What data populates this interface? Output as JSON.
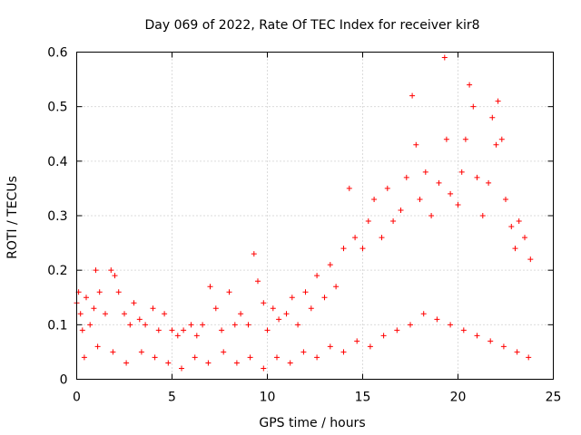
{
  "chart_data": {
    "type": "scatter",
    "title": "Day 069 of 2022, Rate Of TEC Index for receiver kir8",
    "xlabel": "GPS time / hours",
    "ylabel": "ROTI / TECUs",
    "xlim": [
      0,
      25
    ],
    "ylim": [
      0,
      0.6
    ],
    "xticks": [
      "0",
      "5",
      "10",
      "15",
      "20",
      "25"
    ],
    "yticks": [
      "0",
      "0.1",
      "0.2",
      "0.3",
      "0.4",
      "0.5",
      "0.6"
    ],
    "grid": true,
    "marker": "plus",
    "color": "#ff0000",
    "series": [
      {
        "points": [
          [
            0.0,
            0.14
          ],
          [
            0.1,
            0.16
          ],
          [
            0.2,
            0.12
          ],
          [
            0.3,
            0.09
          ],
          [
            0.5,
            0.15
          ],
          [
            0.7,
            0.1
          ],
          [
            0.9,
            0.13
          ],
          [
            1.0,
            0.2
          ],
          [
            1.2,
            0.16
          ],
          [
            1.5,
            0.12
          ],
          [
            1.8,
            0.2
          ],
          [
            2.0,
            0.19
          ],
          [
            2.2,
            0.16
          ],
          [
            2.5,
            0.12
          ],
          [
            2.8,
            0.1
          ],
          [
            3.0,
            0.14
          ],
          [
            3.3,
            0.11
          ],
          [
            3.6,
            0.1
          ],
          [
            4.0,
            0.13
          ],
          [
            4.3,
            0.09
          ],
          [
            4.6,
            0.12
          ],
          [
            5.0,
            0.09
          ],
          [
            5.3,
            0.08
          ],
          [
            5.6,
            0.09
          ],
          [
            6.0,
            0.1
          ],
          [
            6.3,
            0.08
          ],
          [
            6.6,
            0.1
          ],
          [
            7.0,
            0.17
          ],
          [
            7.3,
            0.13
          ],
          [
            7.6,
            0.09
          ],
          [
            8.0,
            0.16
          ],
          [
            8.3,
            0.1
          ],
          [
            8.6,
            0.12
          ],
          [
            9.0,
            0.1
          ],
          [
            9.3,
            0.23
          ],
          [
            9.5,
            0.18
          ],
          [
            9.8,
            0.14
          ],
          [
            10.0,
            0.09
          ],
          [
            10.3,
            0.13
          ],
          [
            10.6,
            0.11
          ],
          [
            11.0,
            0.12
          ],
          [
            11.3,
            0.15
          ],
          [
            11.6,
            0.1
          ],
          [
            12.0,
            0.16
          ],
          [
            12.3,
            0.13
          ],
          [
            12.6,
            0.19
          ],
          [
            13.0,
            0.15
          ],
          [
            13.3,
            0.21
          ],
          [
            13.6,
            0.17
          ],
          [
            14.0,
            0.24
          ],
          [
            14.3,
            0.35
          ],
          [
            14.6,
            0.26
          ],
          [
            15.0,
            0.24
          ],
          [
            15.3,
            0.29
          ],
          [
            15.6,
            0.33
          ],
          [
            16.0,
            0.26
          ],
          [
            16.3,
            0.35
          ],
          [
            16.6,
            0.29
          ],
          [
            17.0,
            0.31
          ],
          [
            17.3,
            0.37
          ],
          [
            17.6,
            0.52
          ],
          [
            17.8,
            0.43
          ],
          [
            18.0,
            0.33
          ],
          [
            18.3,
            0.38
          ],
          [
            18.6,
            0.3
          ],
          [
            19.0,
            0.36
          ],
          [
            19.3,
            0.59
          ],
          [
            19.4,
            0.44
          ],
          [
            19.6,
            0.34
          ],
          [
            20.0,
            0.32
          ],
          [
            20.2,
            0.38
          ],
          [
            20.4,
            0.44
          ],
          [
            20.6,
            0.54
          ],
          [
            20.8,
            0.5
          ],
          [
            21.0,
            0.37
          ],
          [
            21.3,
            0.3
          ],
          [
            21.6,
            0.36
          ],
          [
            21.8,
            0.48
          ],
          [
            22.0,
            0.43
          ],
          [
            22.1,
            0.51
          ],
          [
            22.3,
            0.44
          ],
          [
            22.5,
            0.33
          ],
          [
            22.8,
            0.28
          ],
          [
            23.0,
            0.24
          ],
          [
            23.2,
            0.29
          ],
          [
            23.5,
            0.26
          ],
          [
            23.8,
            0.22
          ],
          [
            0.4,
            0.04
          ],
          [
            1.1,
            0.06
          ],
          [
            1.9,
            0.05
          ],
          [
            2.6,
            0.03
          ],
          [
            3.4,
            0.05
          ],
          [
            4.1,
            0.04
          ],
          [
            4.8,
            0.03
          ],
          [
            5.5,
            0.02
          ],
          [
            6.2,
            0.04
          ],
          [
            6.9,
            0.03
          ],
          [
            7.7,
            0.05
          ],
          [
            8.4,
            0.03
          ],
          [
            9.1,
            0.04
          ],
          [
            9.8,
            0.02
          ],
          [
            10.5,
            0.04
          ],
          [
            11.2,
            0.03
          ],
          [
            11.9,
            0.05
          ],
          [
            12.6,
            0.04
          ],
          [
            13.3,
            0.06
          ],
          [
            14.0,
            0.05
          ],
          [
            14.7,
            0.07
          ],
          [
            15.4,
            0.06
          ],
          [
            16.1,
            0.08
          ],
          [
            16.8,
            0.09
          ],
          [
            17.5,
            0.1
          ],
          [
            18.2,
            0.12
          ],
          [
            18.9,
            0.11
          ],
          [
            19.6,
            0.1
          ],
          [
            20.3,
            0.09
          ],
          [
            21.0,
            0.08
          ],
          [
            21.7,
            0.07
          ],
          [
            22.4,
            0.06
          ],
          [
            23.1,
            0.05
          ],
          [
            23.7,
            0.04
          ]
        ]
      }
    ]
  }
}
